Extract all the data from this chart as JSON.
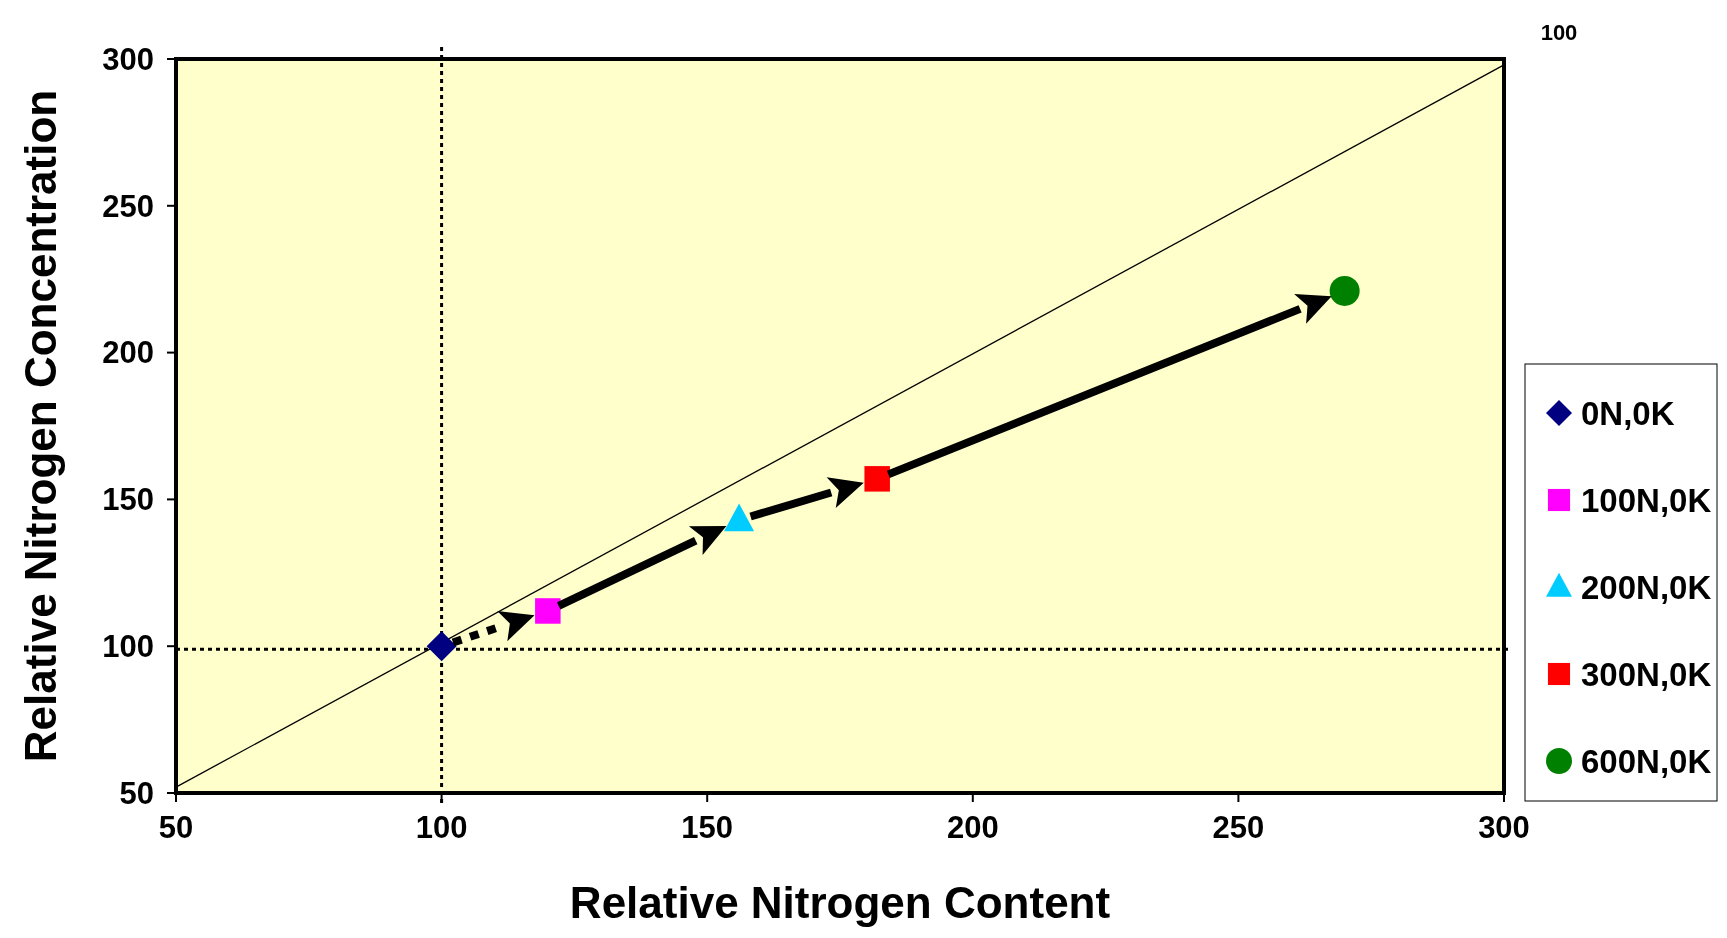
{
  "chart_data": {
    "type": "scatter",
    "xlabel": "Relative Nitrogen Content",
    "ylabel": "Relative Nitrogen Concentration",
    "xlim": [
      50,
      300
    ],
    "xticks": [
      50,
      100,
      150,
      200,
      250,
      300
    ],
    "ylim": [
      50,
      300
    ],
    "yticks": [
      50,
      100,
      150,
      200,
      250,
      300
    ],
    "legend": "right",
    "grid": false,
    "annotations": [
      "100"
    ],
    "ref_lines": [
      {
        "axis": "x",
        "value": 100,
        "color": "#000000",
        "line_style": "dotted"
      },
      {
        "axis": "y",
        "value": 99,
        "color": "#000000",
        "line_style": "dotted"
      }
    ],
    "series": [
      {
        "name": "0N,0K",
        "color": "#000080",
        "marker": "diamond",
        "x": [
          100
        ],
        "values": [
          100
        ]
      },
      {
        "name": "100N,0K",
        "color": "#ff00ff",
        "marker": "square",
        "x": [
          120
        ],
        "values": [
          112
        ]
      },
      {
        "name": "200N,0K",
        "color": "#00ccff",
        "marker": "triangle",
        "x": [
          156
        ],
        "values": [
          143
        ]
      },
      {
        "name": "300N,0K",
        "color": "#ff0000",
        "marker": "square",
        "x": [
          182
        ],
        "values": [
          157
        ]
      },
      {
        "name": "600N,0K",
        "color": "#008000",
        "marker": "circle",
        "x": [
          270
        ],
        "values": [
          221
        ]
      },
      {
        "type": "line",
        "color": "#000000",
        "line_style": "solid",
        "marker": "none",
        "x": [
          50,
          300
        ],
        "values": [
          52,
          298
        ]
      }
    ]
  }
}
